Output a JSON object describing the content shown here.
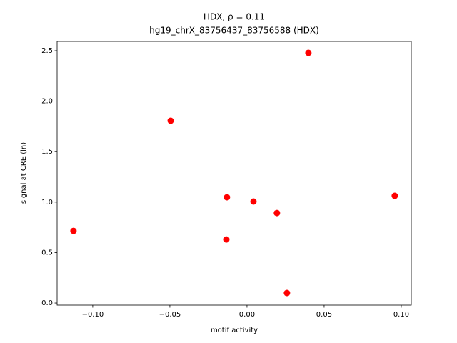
{
  "chart_data": {
    "type": "scatter",
    "title": "HDX, ρ = 0.11",
    "subtitle": "hg19_chrX_83756437_83756588 (HDX)",
    "x_label": "motif activity",
    "y_label": "signal at CRE (ln)",
    "color": "#ff0000",
    "x": [
      -0.1125,
      -0.0495,
      -0.013,
      -0.0134,
      0.0042,
      0.0194,
      0.0259,
      0.0398,
      0.0958
    ],
    "values": [
      0.715,
      1.806,
      1.048,
      0.63,
      1.006,
      0.892,
      0.099,
      2.479,
      1.062
    ],
    "xlim": [
      -0.1231,
      0.1065
    ],
    "ylim": [
      -0.021,
      2.592
    ],
    "xticks": [
      {
        "value": -0.1,
        "label": "−0.10"
      },
      {
        "value": -0.05,
        "label": "−0.05"
      },
      {
        "value": 0,
        "label": "0.00"
      },
      {
        "value": 0.05,
        "label": "0.05"
      },
      {
        "value": 0.1,
        "label": "0.10"
      }
    ],
    "yticks": [
      {
        "value": 0,
        "label": "0.0"
      },
      0.5,
      {
        "value": 1,
        "label": "1.0"
      },
      1.5,
      {
        "value": 2,
        "label": "2.0"
      },
      2.5
    ]
  }
}
